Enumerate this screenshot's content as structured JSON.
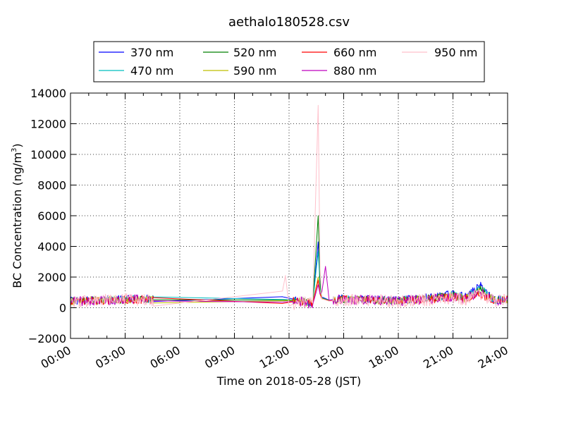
{
  "chart_data": {
    "type": "line",
    "title": "aethalo180528.csv",
    "xlabel": "Time on 2018-05-28 (JST)",
    "ylabel_main": "BC Concentration (ng/m",
    "ylabel_sup": "3",
    "ylabel_close": ")",
    "x_unit": "hours",
    "xlim": [
      0,
      24
    ],
    "ylim": [
      -2000,
      14000
    ],
    "x_ticks": [
      {
        "value": 0,
        "label": "00:00"
      },
      {
        "value": 3,
        "label": "03:00"
      },
      {
        "value": 6,
        "label": "06:00"
      },
      {
        "value": 9,
        "label": "09:00"
      },
      {
        "value": 12,
        "label": "12:00"
      },
      {
        "value": 15,
        "label": "15:00"
      },
      {
        "value": 18,
        "label": "18:00"
      },
      {
        "value": 21,
        "label": "21:00"
      },
      {
        "value": 24,
        "label": "24:00"
      }
    ],
    "y_ticks": [
      {
        "value": -2000,
        "label": "−2000"
      },
      {
        "value": 0,
        "label": "0"
      },
      {
        "value": 2000,
        "label": "2000"
      },
      {
        "value": 4000,
        "label": "4000"
      },
      {
        "value": 6000,
        "label": "6000"
      },
      {
        "value": 8000,
        "label": "8000"
      },
      {
        "value": 10000,
        "label": "10000"
      },
      {
        "value": 12000,
        "label": "12000"
      },
      {
        "value": 14000,
        "label": "14000"
      }
    ],
    "grid": true,
    "legend_position": "top",
    "series": [
      {
        "name": "370 nm",
        "color": "#0000ff",
        "baseline": 480,
        "amplitude": 260,
        "x": [
          0,
          4,
          6,
          11.5,
          12.5,
          13.3,
          13.6,
          13.7,
          13.8,
          14.2,
          15,
          18,
          20,
          21,
          21.7,
          22.5,
          23.3,
          24
        ],
        "y": [
          450,
          600,
          500,
          750,
          500,
          300,
          4300,
          1500,
          700,
          500,
          600,
          500,
          700,
          900,
          700,
          1450,
          500,
          600
        ]
      },
      {
        "name": "470 nm",
        "color": "#00bfbf",
        "baseline": 470,
        "amplitude": 250,
        "x": [
          0,
          4,
          6,
          11.5,
          12.5,
          13.3,
          13.6,
          13.7,
          13.8,
          14.2,
          15,
          18,
          20,
          21,
          21.7,
          22.5,
          23.3,
          24
        ],
        "y": [
          440,
          580,
          480,
          550,
          480,
          300,
          3700,
          1400,
          650,
          480,
          570,
          480,
          650,
          850,
          650,
          1300,
          480,
          570
        ]
      },
      {
        "name": "520 nm",
        "color": "#008000",
        "baseline": 460,
        "amplitude": 250,
        "x": [
          0,
          4,
          6,
          11.5,
          12.5,
          13.3,
          13.6,
          13.7,
          13.8,
          14.2,
          15,
          18,
          20,
          21,
          21.7,
          22.5,
          23.3,
          24
        ],
        "y": [
          430,
          570,
          470,
          500,
          470,
          300,
          6000,
          1800,
          630,
          470,
          560,
          470,
          630,
          800,
          630,
          1200,
          470,
          560
        ]
      },
      {
        "name": "590 nm",
        "color": "#bfbf00",
        "baseline": 440,
        "amplitude": 270,
        "x": [
          0,
          4,
          6,
          11.5,
          12.5,
          13.3,
          13.6,
          13.7,
          13.8,
          14.2,
          15,
          18,
          20,
          21,
          21.7,
          22.5,
          23.3,
          24
        ],
        "y": [
          420,
          560,
          460,
          450,
          460,
          300,
          2000,
          1000,
          600,
          460,
          550,
          460,
          600,
          750,
          600,
          1000,
          460,
          550
        ]
      },
      {
        "name": "660 nm",
        "color": "#ff0000",
        "baseline": 430,
        "amplitude": 280,
        "x": [
          0,
          4,
          6,
          11.5,
          12.5,
          13.3,
          13.6,
          13.7,
          13.8,
          14.2,
          15,
          18,
          20,
          21,
          21.7,
          22.5,
          23.3,
          24
        ],
        "y": [
          410,
          550,
          450,
          250,
          450,
          300,
          1800,
          900,
          580,
          450,
          540,
          450,
          580,
          700,
          580,
          900,
          450,
          540
        ]
      },
      {
        "name": "880 nm",
        "color": "#bf00bf",
        "baseline": 430,
        "amplitude": 320,
        "x": [
          0,
          4,
          6,
          11.5,
          12.5,
          13.3,
          13.6,
          13.7,
          13.8,
          14.0,
          14.2,
          15,
          18,
          20,
          21,
          21.7,
          22.5,
          23.3,
          24
        ],
        "y": [
          420,
          560,
          450,
          350,
          450,
          200,
          1500,
          900,
          1000,
          2700,
          500,
          540,
          450,
          580,
          700,
          580,
          1000,
          450,
          540
        ]
      },
      {
        "name": "950 nm",
        "color": "#ffc0cb",
        "baseline": 410,
        "amplitude": 420,
        "x": [
          0,
          4,
          6,
          11.5,
          11.8,
          12.0,
          12.5,
          13.3,
          13.6,
          13.7,
          13.8,
          14.2,
          15,
          18,
          20,
          21,
          21.7,
          22.5,
          23.3,
          24
        ],
        "y": [
          400,
          540,
          430,
          200,
          2100,
          100,
          430,
          300,
          13200,
          2500,
          580,
          430,
          520,
          430,
          560,
          680,
          560,
          900,
          430,
          520
        ]
      }
    ]
  }
}
